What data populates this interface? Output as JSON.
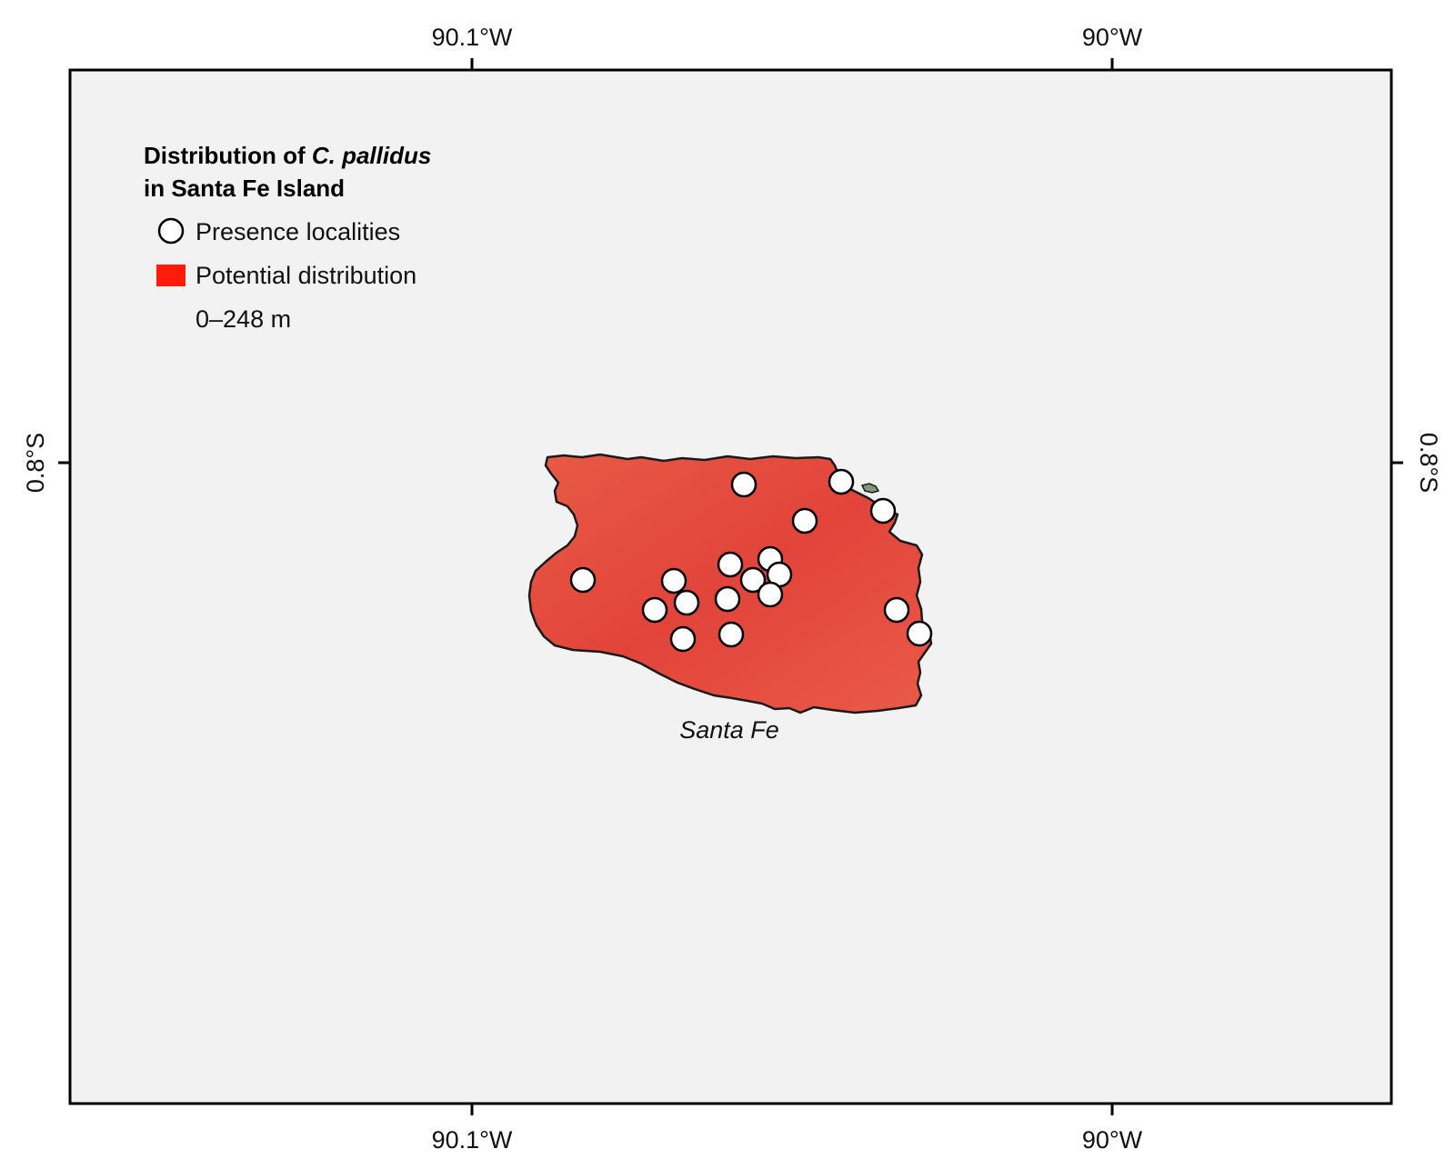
{
  "legend": {
    "title_line1_prefix": "Distribution of ",
    "title_line1_species": "C. pallidus",
    "title_line2": "in Santa Fe Island",
    "items": [
      {
        "label": "Presence localities",
        "symbol": "circle"
      },
      {
        "label": "Potential distribution",
        "symbol": "square"
      },
      {
        "label": "0–248 m",
        "symbol": "none"
      }
    ]
  },
  "axes": {
    "top": [
      "90.1°W",
      "90°W"
    ],
    "bottom": [
      "90.1°W",
      "90°W"
    ],
    "left": [
      "0.8°S"
    ],
    "right": [
      "0.8°S"
    ]
  },
  "island": {
    "name": "Santa Fe"
  },
  "colors": {
    "map_background": "#f2f2f2",
    "frame": "#000000",
    "potential_distribution": "#ff1a0a",
    "island_fill": "#e8463a",
    "island_edge": "#1a1a1a",
    "islet": "#7f9a7a",
    "presence_marker_fill": "#ffffff",
    "presence_marker_stroke": "#000000"
  }
}
